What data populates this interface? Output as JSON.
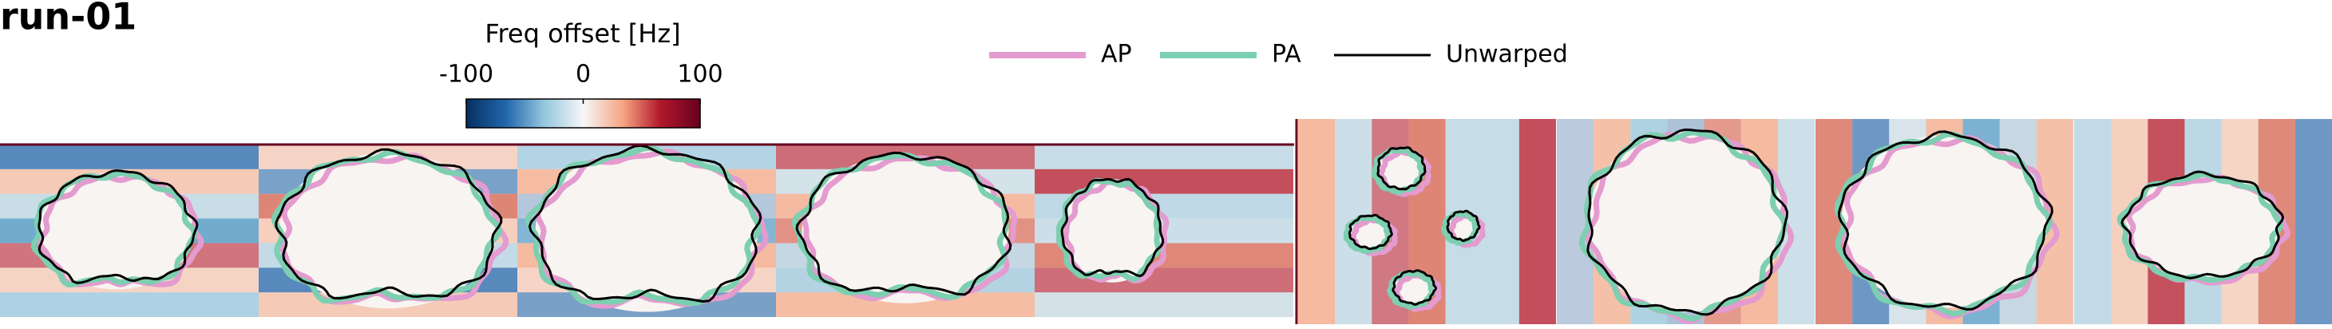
{
  "title": "run-01",
  "colorbar": {
    "label": "Freq offset [Hz]",
    "lim": [
      -100,
      100
    ],
    "ticks": [
      -100,
      0,
      100
    ]
  },
  "legend": [
    {
      "name": "AP",
      "color": "#e49bcf"
    },
    {
      "name": "PA",
      "color": "#7ccfb0"
    },
    {
      "name": "Unwarped",
      "color": "#000000"
    }
  ]
}
